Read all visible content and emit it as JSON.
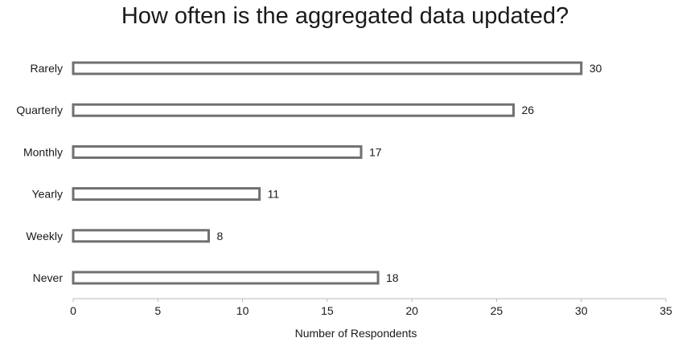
{
  "chart_data": {
    "type": "bar",
    "orientation": "horizontal",
    "title": "How often is the aggregated data updated?",
    "xlabel": "Number of Respondents",
    "ylabel": "",
    "categories": [
      "Rarely",
      "Quarterly",
      "Monthly",
      "Yearly",
      "Weekly",
      "Never"
    ],
    "values": [
      30,
      26,
      17,
      11,
      8,
      18
    ],
    "xlim": [
      0,
      35
    ],
    "xticks": [
      0,
      5,
      10,
      15,
      20,
      25,
      30,
      35
    ],
    "data_labels": true,
    "grid": false,
    "legend": "none",
    "colors": {
      "bar_fill": "#ffffff",
      "bar_stroke": "#707070",
      "axis": "#b8b8b8",
      "text": "#1a1a1a"
    }
  }
}
